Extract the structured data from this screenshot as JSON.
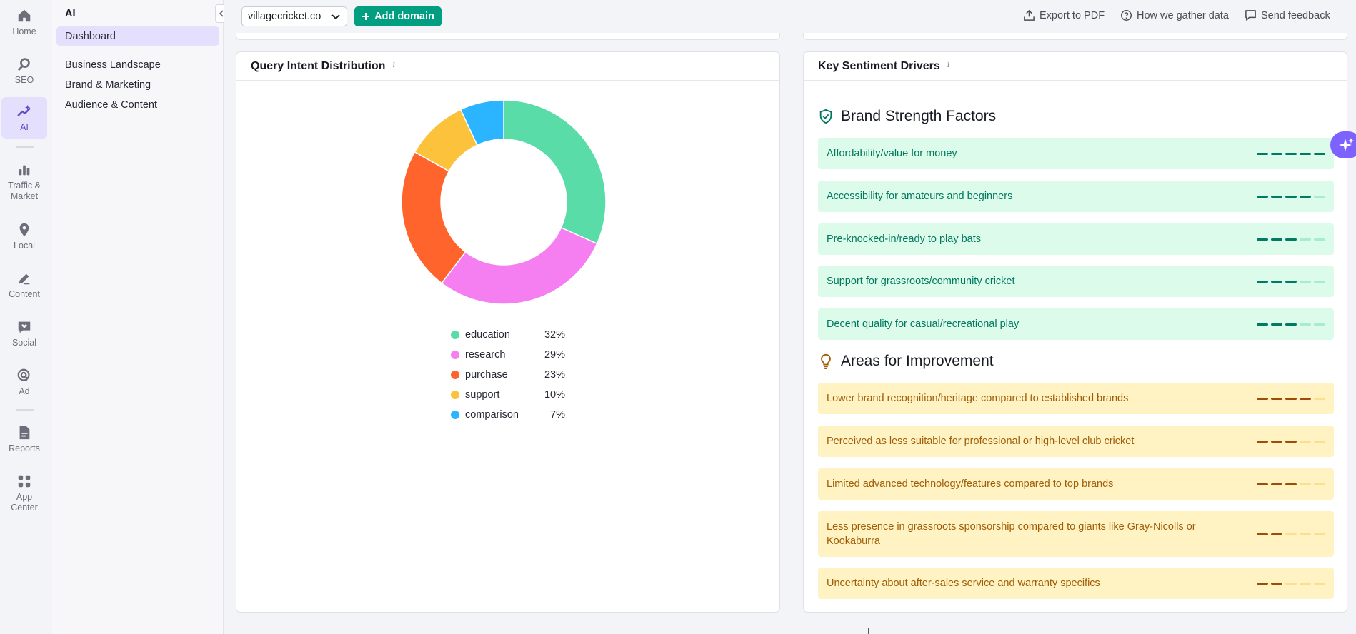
{
  "rail": {
    "items": [
      {
        "label": "Home",
        "icon": "home-icon"
      },
      {
        "label": "SEO",
        "icon": "seo-icon"
      },
      {
        "label": "AI",
        "icon": "ai-icon",
        "active": true
      },
      {
        "label": "Traffic &\nMarket",
        "icon": "traffic-icon"
      },
      {
        "label": "Local",
        "icon": "location-pin-icon"
      },
      {
        "label": "Content",
        "icon": "pencil-icon"
      },
      {
        "label": "Social",
        "icon": "heart-chat-icon"
      },
      {
        "label": "Ad",
        "icon": "target-cursor-icon"
      },
      {
        "label": "Reports",
        "icon": "report-icon"
      },
      {
        "label": "App\nCenter",
        "icon": "apps-grid-icon"
      }
    ]
  },
  "subnav": {
    "title": "AI",
    "items": [
      {
        "label": "Dashboard",
        "active": true
      },
      {
        "label": "Business Landscape"
      },
      {
        "label": "Brand & Marketing"
      },
      {
        "label": "Audience & Content"
      }
    ]
  },
  "topbar": {
    "domain": "villagecricket.co",
    "add_domain": "Add domain",
    "export": "Export to PDF",
    "how": "How we gather data",
    "feedback": "Send feedback"
  },
  "query_intent": {
    "title": "Query Intent Distribution",
    "info": "i",
    "chart_data": {
      "type": "pie",
      "categories": [
        "education",
        "research",
        "purchase",
        "support",
        "comparison"
      ],
      "values": [
        32,
        29,
        23,
        10,
        7
      ],
      "labels": [
        "32%",
        "29%",
        "23%",
        "10%",
        "7%"
      ],
      "colors": [
        "#5adca8",
        "#f57ff0",
        "#ff642d",
        "#fdc23c",
        "#2bb4ff"
      ],
      "legend": "bottom"
    }
  },
  "sentiment": {
    "title": "Key Sentiment Drivers",
    "info": "i",
    "strength_title": "Brand Strength Factors",
    "improve_title": "Areas for Improvement",
    "strengths": [
      {
        "label": "Affordability/value for money",
        "score": 5
      },
      {
        "label": "Accessibility for amateurs and beginners",
        "score": 4
      },
      {
        "label": "Pre-knocked-in/ready to play bats",
        "score": 3
      },
      {
        "label": "Support for grassroots/community cricket",
        "score": 3
      },
      {
        "label": "Decent quality for casual/recreational play",
        "score": 3
      }
    ],
    "improvements": [
      {
        "label": "Lower brand recognition/heritage compared to established brands",
        "score": 4
      },
      {
        "label": "Perceived as less suitable for professional or high-level club cricket",
        "score": 3
      },
      {
        "label": "Limited advanced technology/features compared to top brands",
        "score": 3
      },
      {
        "label": "Less presence in grassroots sponsorship compared to giants like Gray-Nicolls or Kookaburra",
        "score": 2
      },
      {
        "label": "Uncertainty about after-sales service and warranty specifics",
        "score": 2
      }
    ],
    "max_score": 5
  },
  "colors": {
    "brand_purple": "#7d62ff",
    "accent_green": "#009f81",
    "positive_bg": "#ddfbeb",
    "negative_bg": "#fff3c4"
  }
}
